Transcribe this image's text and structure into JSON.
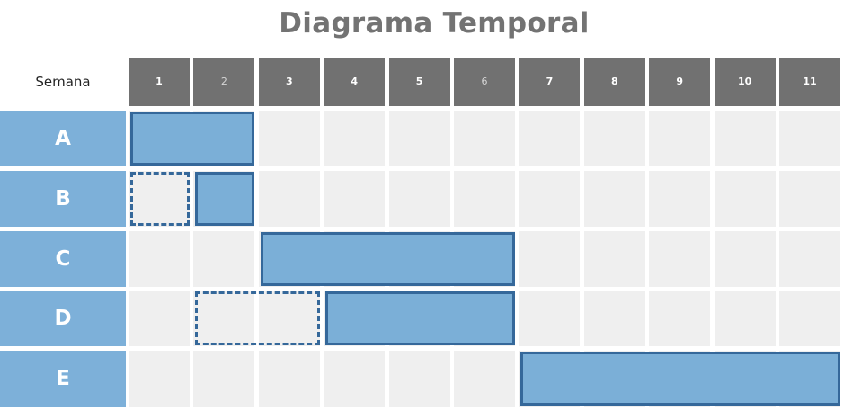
{
  "title": "Diagrama Temporal",
  "week_label": "Semana",
  "weeks": [
    "1",
    "2",
    "3",
    "4",
    "5",
    "6",
    "7",
    "8",
    "9",
    "10",
    "11"
  ],
  "dim_weeks": [
    "2",
    "6"
  ],
  "tasks": [
    {
      "label": "A",
      "bars": [
        {
          "start": 1,
          "end": 2,
          "style": "solid"
        }
      ]
    },
    {
      "label": "B",
      "bars": [
        {
          "start": 1,
          "end": 1,
          "style": "dashed"
        },
        {
          "start": 2,
          "end": 2,
          "style": "solid"
        }
      ]
    },
    {
      "label": "C",
      "bars": [
        {
          "start": 3,
          "end": 6,
          "style": "solid"
        }
      ]
    },
    {
      "label": "D",
      "bars": [
        {
          "start": 2,
          "end": 3,
          "style": "dashed"
        },
        {
          "start": 4,
          "end": 6,
          "style": "solid"
        }
      ]
    },
    {
      "label": "E",
      "bars": [
        {
          "start": 7,
          "end": 11,
          "style": "solid"
        }
      ]
    }
  ],
  "colors": {
    "header": "#717171",
    "task_label": "#7db0d9",
    "bar_fill": "#7bafd7",
    "bar_border": "#35689a",
    "cell": "#efefef"
  }
}
